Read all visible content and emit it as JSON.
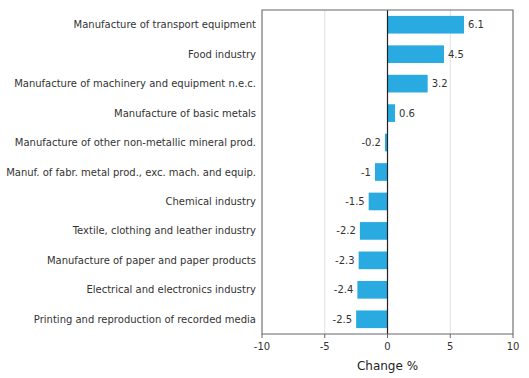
{
  "chart_data": {
    "type": "bar",
    "orientation": "horizontal",
    "categories": [
      "Printing and reproduction of recorded media",
      "Electrical and electronics industry",
      "Manufacture of paper and paper products",
      "Textile, clothing and leather industry",
      "Chemical industry",
      "Manuf. of fabr. metal prod., exc. mach. and equip.",
      "Manufacture of other non-metallic mineral prod.",
      "Manufacture of basic metals",
      "Manufacture of machinery and equipment n.e.c.",
      "Food industry",
      "Manufacture of transport equipment"
    ],
    "values": [
      -2.5,
      -2.4,
      -2.3,
      -2.2,
      -1.5,
      -1.0,
      -0.2,
      0.6,
      3.2,
      4.5,
      6.1
    ],
    "color": "#29abe2",
    "xlabel": "Change %",
    "xlim": [
      -10,
      10
    ],
    "xticks": [
      -10,
      -5,
      0,
      5,
      10
    ],
    "grid": true,
    "data_labels": true
  }
}
